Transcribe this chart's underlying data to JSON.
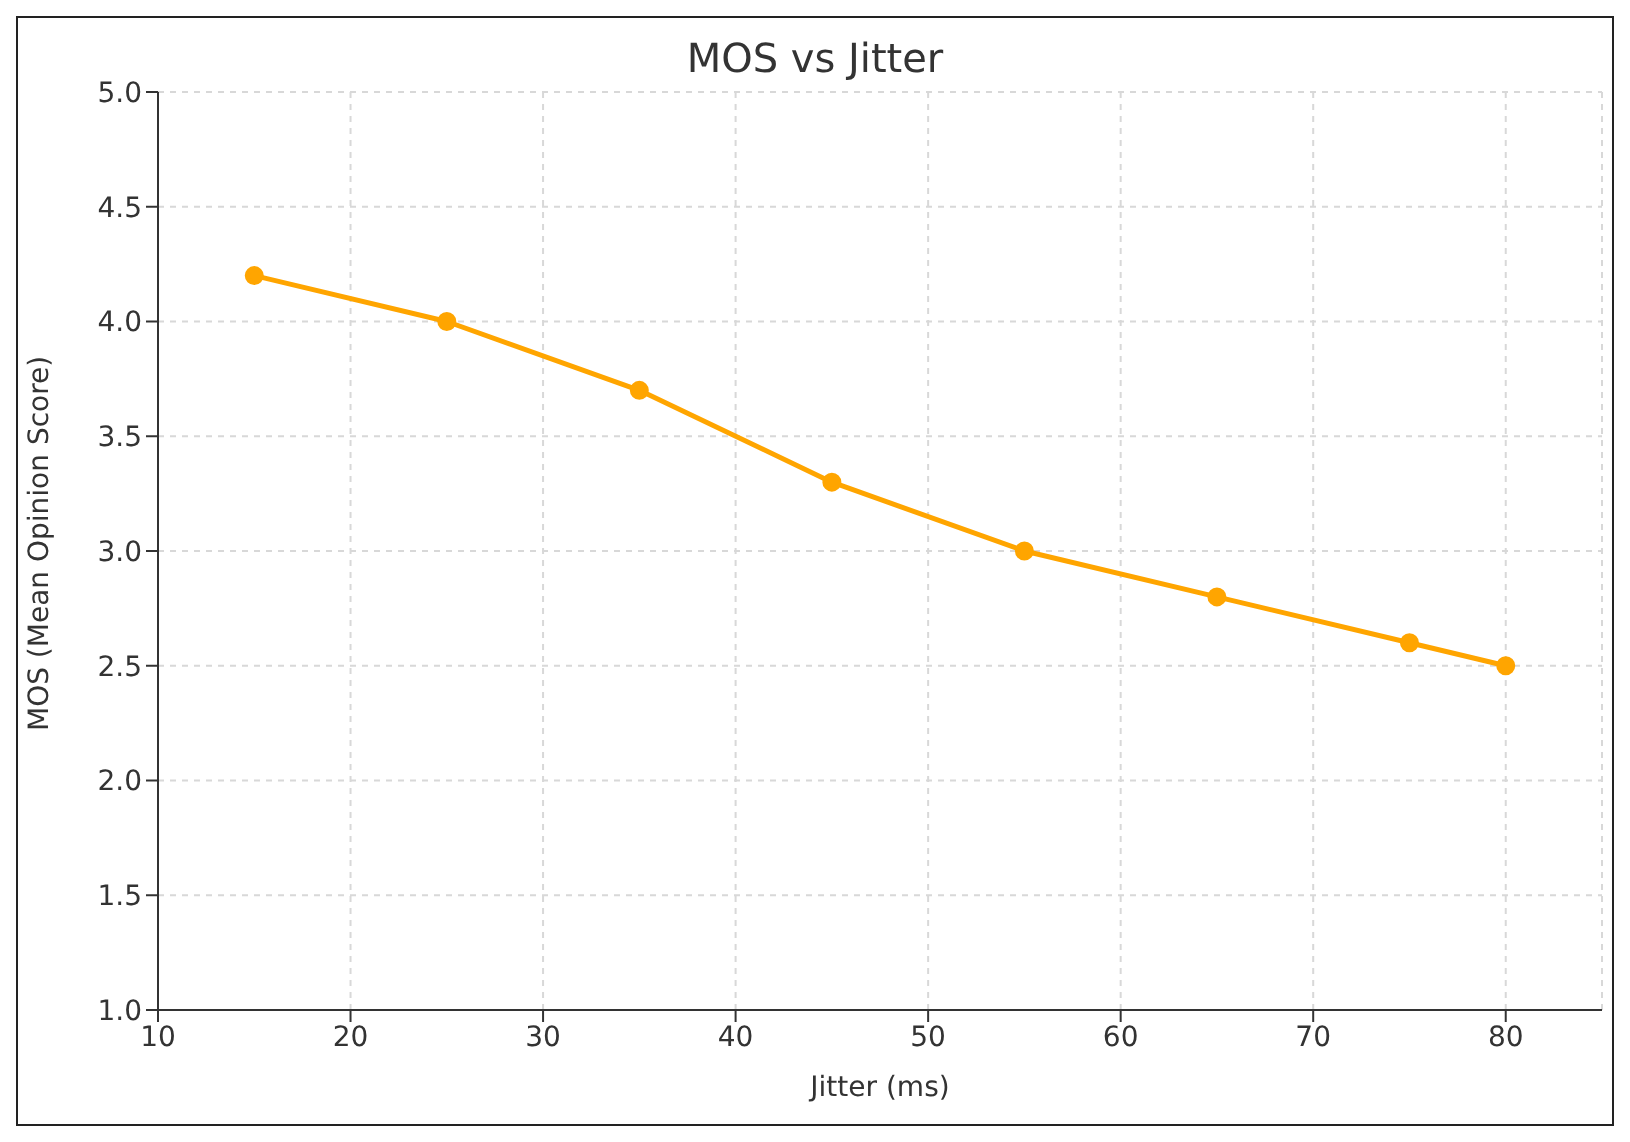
{
  "chart_data": {
    "type": "line",
    "title": "MOS vs Jitter",
    "xlabel": "Jitter (ms)",
    "ylabel": "MOS (Mean Opinion Score)",
    "x": [
      15,
      25,
      35,
      45,
      55,
      65,
      75,
      80
    ],
    "series": [
      {
        "color": "#ffa500",
        "values": [
          4.2,
          4.0,
          3.7,
          3.3,
          3.0,
          2.8,
          2.6,
          2.5
        ]
      }
    ],
    "xlim": [
      10,
      85
    ],
    "xticks": [
      10,
      20,
      30,
      40,
      50,
      60,
      70,
      80
    ],
    "ylim": [
      1,
      5
    ],
    "yticks": [
      {
        "value": 1,
        "label": "1.0"
      },
      1.5,
      {
        "value": 2,
        "label": "2.0"
      },
      2.5,
      {
        "value": 3,
        "label": "3.0"
      },
      3.5,
      {
        "value": 4,
        "label": "4.0"
      },
      4.5,
      {
        "value": 5,
        "label": "5.0"
      }
    ],
    "grid": true,
    "marker": "circle",
    "line_style": "solid",
    "legend": false
  }
}
